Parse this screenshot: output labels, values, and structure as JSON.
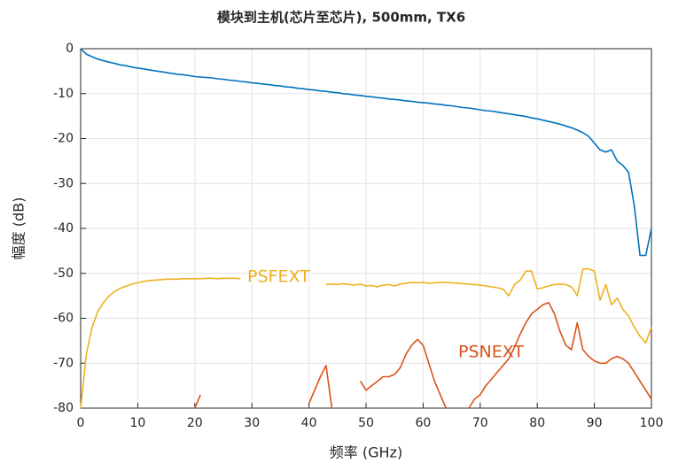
{
  "chart_data": {
    "type": "line",
    "title": "模块到主机(芯片至芯片), 500mm, TX6",
    "x_label": "频率 (GHz)",
    "y_label": "幅度 (dB)",
    "x": [
      0,
      1,
      2,
      3,
      4,
      5,
      6,
      7,
      8,
      9,
      10,
      11,
      12,
      13,
      14,
      15,
      16,
      17,
      18,
      19,
      20,
      21,
      22,
      23,
      24,
      25,
      26,
      27,
      28,
      29,
      30,
      31,
      32,
      33,
      34,
      35,
      36,
      37,
      38,
      39,
      40,
      41,
      42,
      43,
      44,
      45,
      46,
      47,
      48,
      49,
      50,
      51,
      52,
      53,
      54,
      55,
      56,
      57,
      58,
      59,
      60,
      61,
      62,
      63,
      64,
      65,
      66,
      67,
      68,
      69,
      70,
      71,
      72,
      73,
      74,
      75,
      76,
      77,
      78,
      79,
      80,
      81,
      82,
      83,
      84,
      85,
      86,
      87,
      88,
      89,
      90,
      91,
      92,
      93,
      94,
      95,
      96,
      97,
      98,
      99,
      100
    ],
    "series": [
      {
        "color": "#0072bd",
        "values": [
          0,
          -1.2,
          -1.8,
          -2.3,
          -2.7,
          -3,
          -3.3,
          -3.6,
          -3.8,
          -4.1,
          -4.3,
          -4.5,
          -4.7,
          -4.9,
          -5.1,
          -5.3,
          -5.5,
          -5.7,
          -5.8,
          -6,
          -6.2,
          -6.3,
          -6.4,
          -6.5,
          -6.7,
          -6.8,
          -7,
          -7.1,
          -7.3,
          -7.4,
          -7.6,
          -7.7,
          -7.9,
          -8,
          -8.2,
          -8.3,
          -8.5,
          -8.6,
          -8.8,
          -8.9,
          -9.1,
          -9.2,
          -9.4,
          -9.5,
          -9.7,
          -9.8,
          -10,
          -10.1,
          -10.3,
          -10.4,
          -10.6,
          -10.7,
          -10.9,
          -11,
          -11.2,
          -11.3,
          -11.4,
          -11.6,
          -11.7,
          -11.9,
          -12,
          -12.1,
          -12.3,
          -12.4,
          -12.6,
          -12.7,
          -12.9,
          -13.1,
          -13.2,
          -13.4,
          -13.6,
          -13.8,
          -13.9,
          -14.1,
          -14.3,
          -14.5,
          -14.7,
          -14.9,
          -15.1,
          -15.4,
          -15.6,
          -15.9,
          -16.2,
          -16.5,
          -16.8,
          -17.2,
          -17.6,
          -18.1,
          -18.7,
          -19.5,
          -21,
          -22.5,
          -23,
          -22.5,
          -25,
          -26,
          -27.5,
          -35,
          -46,
          -46,
          -40
        ]
      },
      {
        "name": "PSFEXT",
        "color": "#edb120",
        "values": [
          -80,
          -68,
          -62,
          -58.5,
          -56.5,
          -55,
          -54,
          -53.3,
          -52.8,
          -52.4,
          -52.1,
          -51.8,
          -51.6,
          -51.5,
          -51.4,
          -51.3,
          -51.3,
          -51.3,
          -51.2,
          -51.2,
          -51.2,
          -51.2,
          -51.1,
          -51.1,
          -51.2,
          -51.1,
          -51.1,
          -51.1,
          -51.2,
          null,
          null,
          null,
          null,
          null,
          null,
          null,
          null,
          null,
          null,
          null,
          null,
          null,
          null,
          -52.5,
          -52.4,
          -52.5,
          -52.3,
          -52.5,
          -52.6,
          -52.4,
          -52.8,
          -52.7,
          -53,
          -52.6,
          -52.5,
          -52.8,
          -52.4,
          -52.2,
          -52,
          -52.1,
          -52,
          -52.2,
          -52.1,
          -52,
          -52,
          -52.1,
          -52.2,
          -52.3,
          -52.4,
          -52.5,
          -52.6,
          -52.8,
          -53,
          -53.2,
          -53.5,
          -55,
          -52.5,
          -51.5,
          -49.5,
          -49.5,
          -53.5,
          -53.2,
          -52.8,
          -52.5,
          -52.4,
          -52.5,
          -53,
          -55,
          -49,
          -49,
          -49.5,
          -56,
          -52.5,
          -57,
          -55.5,
          -58,
          -59.5,
          -62,
          -64,
          -65.5,
          -62
        ]
      },
      {
        "name": "PSNEXT",
        "color": "#d95319",
        "values": [
          null,
          null,
          null,
          null,
          null,
          null,
          null,
          null,
          null,
          null,
          null,
          null,
          null,
          null,
          null,
          null,
          null,
          null,
          null,
          null,
          -80,
          -77,
          null,
          null,
          null,
          null,
          null,
          null,
          null,
          null,
          null,
          null,
          null,
          null,
          null,
          null,
          null,
          null,
          null,
          null,
          -79,
          -76,
          -73,
          -70.5,
          -80,
          null,
          null,
          null,
          null,
          -74,
          -76,
          -75,
          -74,
          -73,
          -73,
          -72.5,
          -71,
          -68,
          -66,
          -64.7,
          -66,
          -70,
          -74,
          -77,
          -80,
          null,
          null,
          null,
          -80,
          -78,
          -77,
          -75,
          -73.5,
          -72,
          -70.5,
          -69,
          -66.5,
          -63.5,
          -61,
          -59,
          -58,
          -57,
          -56.5,
          -59,
          -63,
          -66,
          -67,
          -61,
          -67,
          -68.5,
          -69.5,
          -70,
          -70,
          -69,
          -68.5,
          -69,
          -70,
          -72,
          -74,
          -76,
          -78
        ]
      }
    ],
    "xlim": [
      0,
      100
    ],
    "xticks": [
      0,
      10,
      20,
      30,
      40,
      50,
      60,
      70,
      80,
      90,
      100
    ],
    "ylim": [
      -80,
      0
    ],
    "yticks": [
      -80,
      -70,
      -60,
      -50,
      -40,
      -30,
      -20,
      -10,
      0
    ],
    "grid": true
  }
}
